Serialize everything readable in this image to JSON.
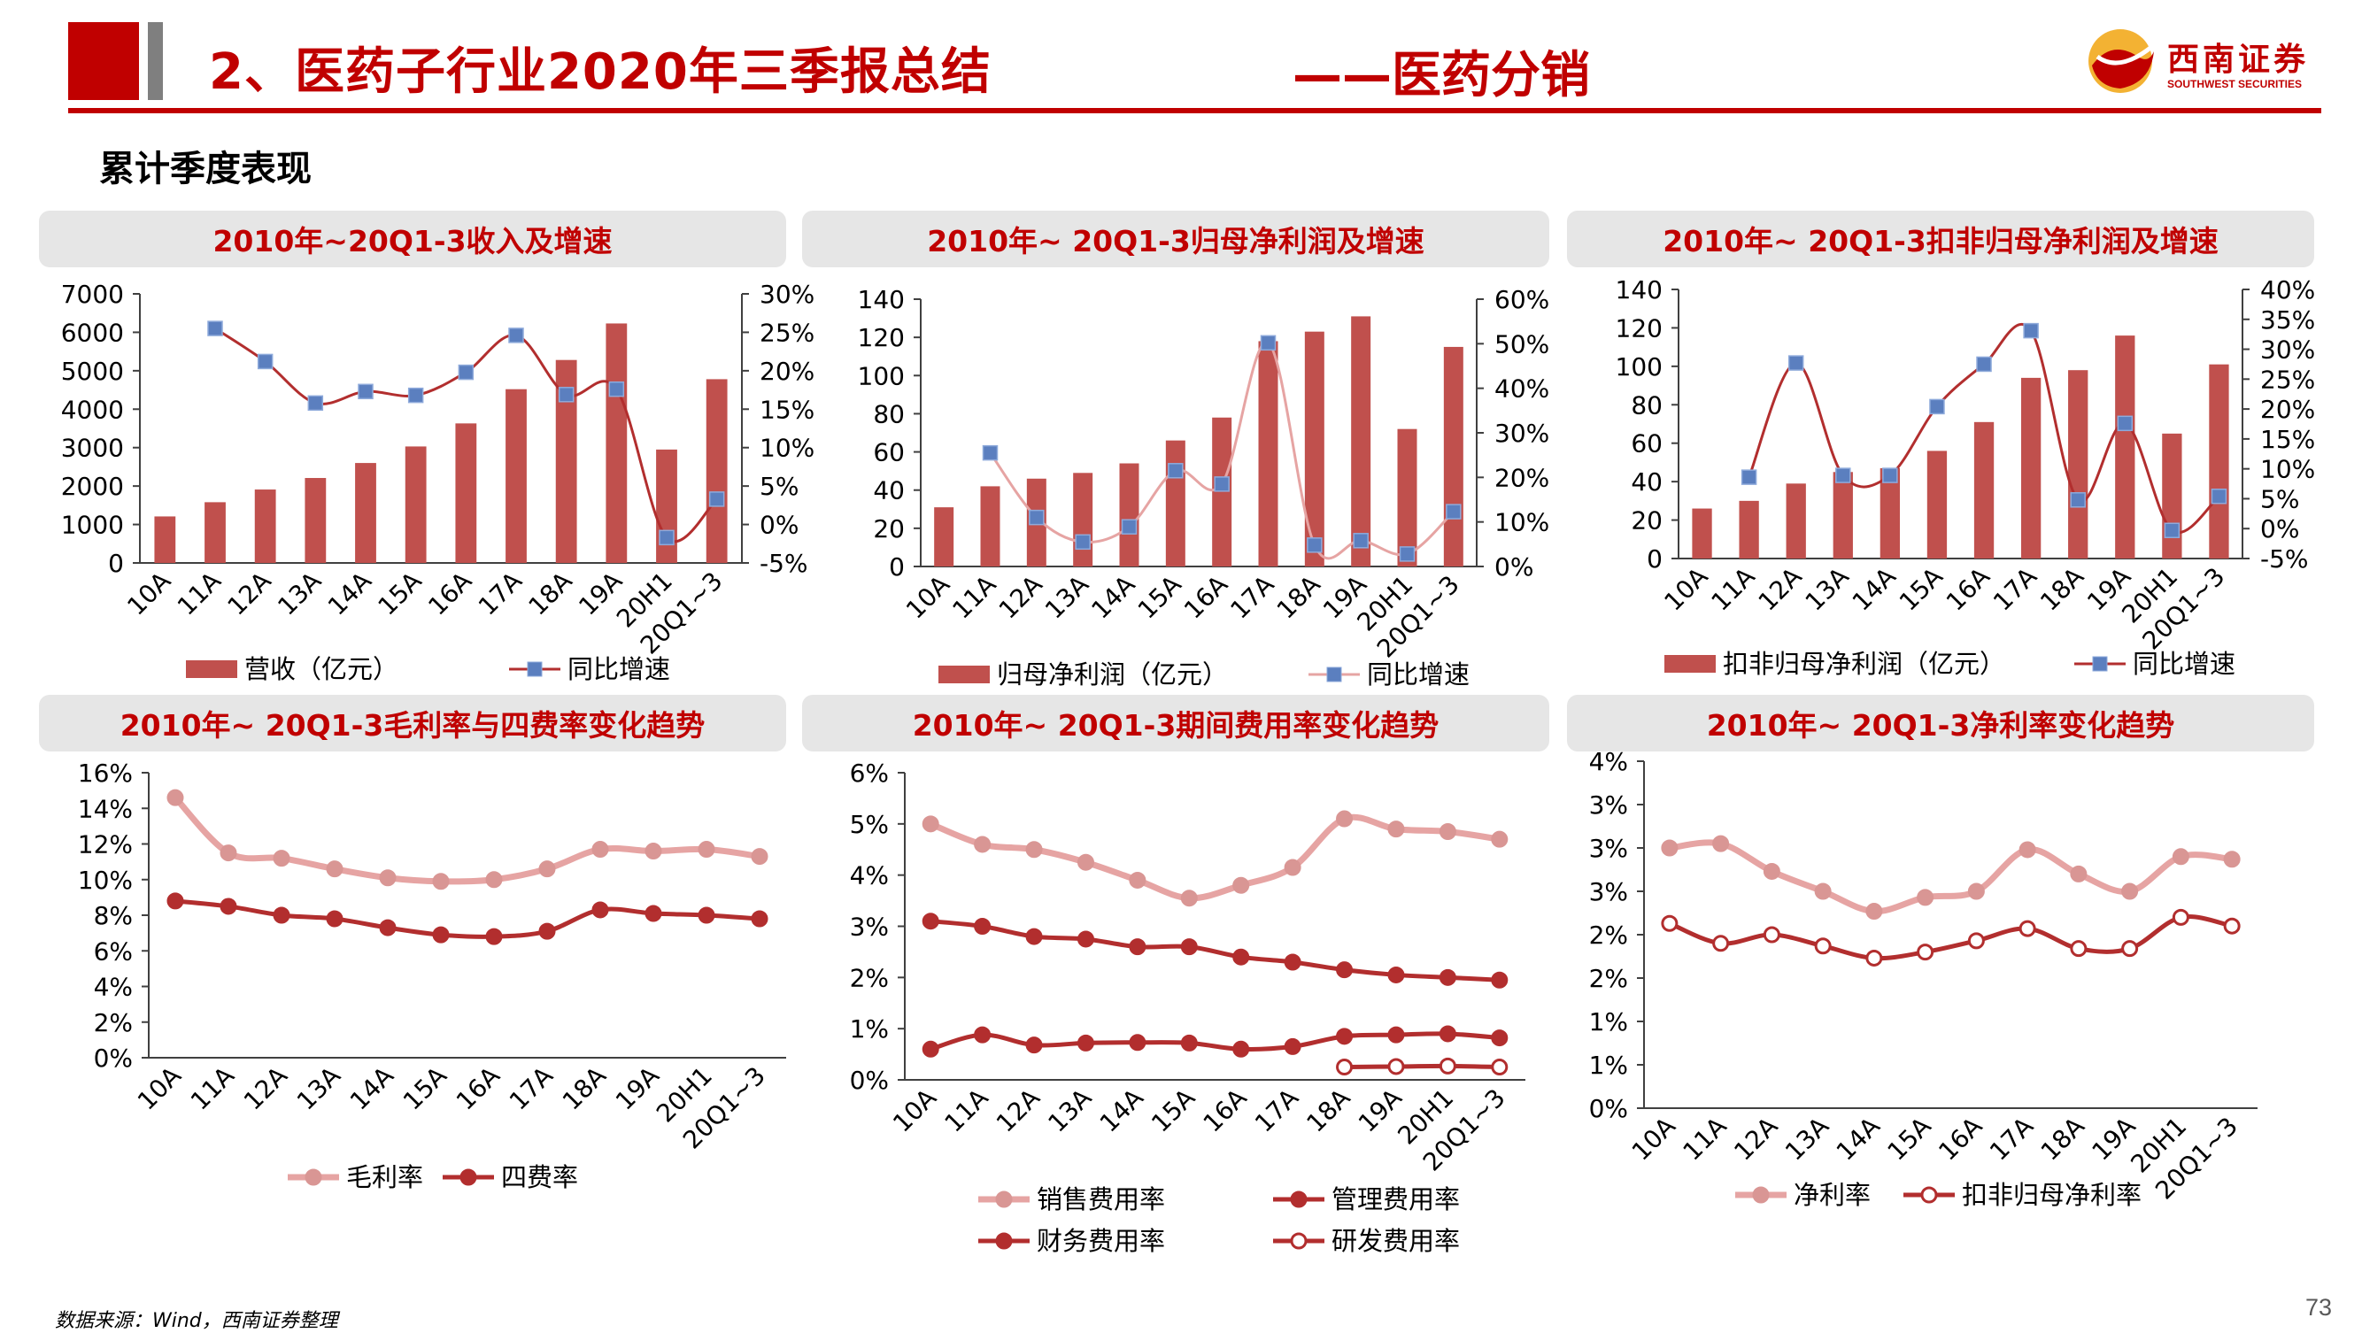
{
  "header": {
    "title": "2、医药子行业2020年三季报总结",
    "subtitle": "——医药分销",
    "logo_cn": "西南证券",
    "logo_en": "SOUTHWEST SECURITIES"
  },
  "section_title": "累计季度表现",
  "footer": {
    "source": "数据来源：Wind，西南证券整理",
    "page_number": "73"
  },
  "colors": {
    "accent": "#c00000",
    "bar": "#c0504d",
    "light_line": "#e6a4a3",
    "light_marker": "#d99694",
    "dark_line": "#b22e2e",
    "square_marker": "#5b7fbf",
    "title_bg": "#e6e6e6"
  },
  "chart_data": [
    {
      "id": "revenue",
      "type": "bar+line",
      "title": "2010年~20Q1-3收入及增速",
      "categories": [
        "10A",
        "11A",
        "12A",
        "13A",
        "14A",
        "15A",
        "16A",
        "17A",
        "18A",
        "19A",
        "20H1",
        "20Q1~3"
      ],
      "y_left": {
        "min": 0,
        "max": 7000,
        "ticks": [
          0,
          1000,
          2000,
          3000,
          4000,
          5000,
          6000,
          7000
        ],
        "labels": [
          "0",
          "1000",
          "2000",
          "3000",
          "4000",
          "5000",
          "6000",
          "7000"
        ]
      },
      "y_right": {
        "min": -5,
        "max": 30,
        "ticks": [
          -5,
          0,
          5,
          10,
          15,
          20,
          25,
          30
        ],
        "labels": [
          "-5%",
          "0%",
          "5%",
          "10%",
          "15%",
          "20%",
          "25%",
          "30%"
        ]
      },
      "series": [
        {
          "name": "营收（亿元）",
          "kind": "bar",
          "axis": "left",
          "values": [
            1210,
            1580,
            1910,
            2210,
            2600,
            3030,
            3630,
            4520,
            5280,
            6230,
            2950,
            4780
          ]
        },
        {
          "name": "同比增速",
          "kind": "line",
          "axis": "right",
          "values": [
            null,
            25.5,
            21.2,
            15.8,
            17.3,
            16.8,
            19.8,
            24.6,
            16.9,
            17.6,
            -1.7,
            3.3
          ]
        }
      ]
    },
    {
      "id": "net_profit",
      "type": "bar+line",
      "title": "2010年~ 20Q1-3归母净利润及增速",
      "categories": [
        "10A",
        "11A",
        "12A",
        "13A",
        "14A",
        "15A",
        "16A",
        "17A",
        "18A",
        "19A",
        "20H1",
        "20Q1~3"
      ],
      "y_left": {
        "min": 0,
        "max": 140,
        "ticks": [
          0,
          20,
          40,
          60,
          80,
          100,
          120,
          140
        ],
        "labels": [
          "0",
          "20",
          "40",
          "60",
          "80",
          "100",
          "120",
          "140"
        ]
      },
      "y_right": {
        "min": 0,
        "max": 60,
        "ticks": [
          0,
          10,
          20,
          30,
          40,
          50,
          60
        ],
        "labels": [
          "0%",
          "10%",
          "20%",
          "30%",
          "40%",
          "50%",
          "60%"
        ]
      },
      "series": [
        {
          "name": "归母净利润（亿元）",
          "kind": "bar",
          "axis": "left",
          "values": [
            31,
            42,
            46,
            49,
            54,
            66,
            78,
            118,
            123,
            131,
            72,
            115
          ]
        },
        {
          "name": "同比增速",
          "kind": "line",
          "axis": "right",
          "values": [
            null,
            25.5,
            11,
            5.5,
            8.9,
            21.5,
            18.5,
            50.2,
            4.8,
            5.8,
            2.8,
            12.3
          ]
        }
      ]
    },
    {
      "id": "deducted_profit",
      "type": "bar+line",
      "title": "2010年~ 20Q1-3扣非归母净利润及增速",
      "categories": [
        "10A",
        "11A",
        "12A",
        "13A",
        "14A",
        "15A",
        "16A",
        "17A",
        "18A",
        "19A",
        "20H1",
        "20Q1~3"
      ],
      "y_left": {
        "min": 0,
        "max": 140,
        "ticks": [
          0,
          20,
          40,
          60,
          80,
          100,
          120,
          140
        ],
        "labels": [
          "0",
          "20",
          "40",
          "60",
          "80",
          "100",
          "120",
          "140"
        ]
      },
      "y_right": {
        "min": -5,
        "max": 40,
        "ticks": [
          -5,
          0,
          5,
          10,
          15,
          20,
          25,
          30,
          35,
          40
        ],
        "labels": [
          "-5%",
          "0%",
          "5%",
          "10%",
          "15%",
          "20%",
          "25%",
          "30%",
          "35%",
          "40%"
        ]
      },
      "series": [
        {
          "name": "扣非归母净利润（亿元）",
          "kind": "bar",
          "axis": "left",
          "values": [
            26,
            30,
            39,
            45,
            47,
            56,
            71,
            94,
            98,
            116,
            65,
            101
          ]
        },
        {
          "name": "同比增速",
          "kind": "line",
          "axis": "right",
          "values": [
            null,
            8.6,
            27.7,
            8.9,
            8.9,
            20.4,
            27.5,
            33.1,
            4.8,
            17.6,
            -0.3,
            5.4
          ]
        }
      ]
    },
    {
      "id": "margin_fee",
      "type": "line",
      "title": "2010年~ 20Q1-3毛利率与四费率变化趋势",
      "categories": [
        "10A",
        "11A",
        "12A",
        "13A",
        "14A",
        "15A",
        "16A",
        "17A",
        "18A",
        "19A",
        "20H1",
        "20Q1~3"
      ],
      "y": {
        "min": 0,
        "max": 16,
        "ticks": [
          0,
          2,
          4,
          6,
          8,
          10,
          12,
          14,
          16
        ],
        "labels": [
          "0%",
          "2%",
          "4%",
          "6%",
          "8%",
          "10%",
          "12%",
          "14%",
          "16%"
        ]
      },
      "series": [
        {
          "name": "毛利率",
          "style": "light",
          "values": [
            14.6,
            11.5,
            11.2,
            10.6,
            10.1,
            9.9,
            10.0,
            10.6,
            11.7,
            11.6,
            11.7,
            11.3
          ]
        },
        {
          "name": "四费率",
          "style": "dark",
          "values": [
            8.8,
            8.5,
            8.0,
            7.8,
            7.3,
            6.9,
            6.8,
            7.1,
            8.3,
            8.1,
            8.0,
            7.8
          ]
        }
      ]
    },
    {
      "id": "period_fee",
      "type": "line",
      "title": "2010年~ 20Q1-3期间费用率变化趋势",
      "categories": [
        "10A",
        "11A",
        "12A",
        "13A",
        "14A",
        "15A",
        "16A",
        "17A",
        "18A",
        "19A",
        "20H1",
        "20Q1~3"
      ],
      "y": {
        "min": 0,
        "max": 6,
        "ticks": [
          0,
          1,
          2,
          3,
          4,
          5,
          6
        ],
        "labels": [
          "0%",
          "1%",
          "2%",
          "3%",
          "4%",
          "5%",
          "6%"
        ]
      },
      "series": [
        {
          "name": "销售费用率",
          "style": "light",
          "values": [
            5.0,
            4.6,
            4.5,
            4.25,
            3.9,
            3.55,
            3.8,
            4.15,
            5.1,
            4.9,
            4.85,
            4.7
          ]
        },
        {
          "name": "管理费用率",
          "style": "dark",
          "values": [
            3.1,
            3.0,
            2.8,
            2.75,
            2.6,
            2.6,
            2.4,
            2.3,
            2.15,
            2.05,
            2.0,
            1.95
          ]
        },
        {
          "name": "财务费用率",
          "style": "dark",
          "values": [
            0.6,
            0.88,
            0.68,
            0.72,
            0.73,
            0.72,
            0.6,
            0.65,
            0.85,
            0.88,
            0.9,
            0.82
          ]
        },
        {
          "name": "研发费用率",
          "style": "hollow",
          "values": [
            null,
            null,
            null,
            null,
            null,
            null,
            null,
            null,
            0.25,
            0.26,
            0.27,
            0.25
          ]
        }
      ]
    },
    {
      "id": "net_margin",
      "type": "line",
      "title": "2010年~ 20Q1-3净利率变化趋势",
      "categories": [
        "10A",
        "11A",
        "12A",
        "13A",
        "14A",
        "15A",
        "16A",
        "17A",
        "18A",
        "19A",
        "20H1",
        "20Q1~3"
      ],
      "y": {
        "min": 0,
        "max": 4,
        "ticks": [
          0,
          0.5,
          1,
          1.5,
          2,
          2.5,
          3,
          3.5,
          4
        ],
        "labels": [
          "0%",
          "1%",
          "1%",
          "2%",
          "2%",
          "3%",
          "3%",
          "3%",
          "4%"
        ]
      },
      "series": [
        {
          "name": "净利率",
          "style": "light",
          "values": [
            3.0,
            3.05,
            2.73,
            2.5,
            2.27,
            2.43,
            2.5,
            2.98,
            2.7,
            2.5,
            2.9,
            2.87
          ]
        },
        {
          "name": "扣非归母净利率",
          "style": "hollow",
          "values": [
            2.13,
            1.9,
            2.0,
            1.87,
            1.73,
            1.8,
            1.93,
            2.07,
            1.84,
            1.84,
            2.2,
            2.1
          ]
        }
      ]
    }
  ]
}
